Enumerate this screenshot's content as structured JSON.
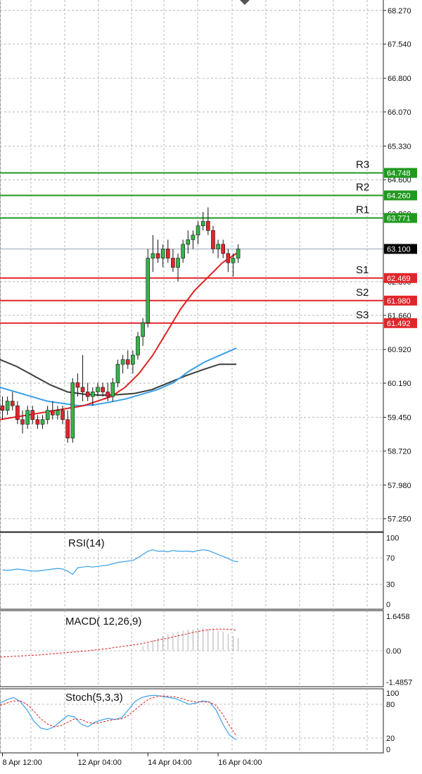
{
  "chart_data": [
    {
      "type": "candlestick",
      "y_ticks": [
        "68.270",
        "67.540",
        "66.800",
        "66.070",
        "65.330",
        "64.600",
        "63.860",
        "63.100",
        "62.390",
        "61.660",
        "60.920",
        "60.190",
        "59.450",
        "58.720",
        "57.980",
        "57.250"
      ],
      "y_tick_values": [
        68.27,
        67.54,
        66.8,
        66.07,
        65.33,
        64.6,
        63.86,
        63.1,
        62.39,
        61.66,
        60.92,
        60.19,
        59.45,
        58.72,
        57.98,
        57.25
      ],
      "ylim": [
        57.0,
        68.5
      ],
      "current_price": {
        "label": "63.100",
        "value": 63.1
      },
      "levels": [
        {
          "name": "R3",
          "label": "64.748",
          "value": 64.748,
          "kind": "resistance"
        },
        {
          "name": "R2",
          "label": "64.260",
          "value": 64.26,
          "kind": "resistance"
        },
        {
          "name": "R1",
          "label": "63.771",
          "value": 63.771,
          "kind": "resistance"
        },
        {
          "name": "S1",
          "label": "62.469",
          "value": 62.469,
          "kind": "support"
        },
        {
          "name": "S2",
          "label": "61.980",
          "value": 61.98,
          "kind": "support"
        },
        {
          "name": "S3",
          "label": "61.492",
          "value": 61.492,
          "kind": "support"
        }
      ],
      "x_ticks": [
        "8 Apr 12:00",
        "12 Apr 04:00",
        "14 Apr 04:00",
        "16 Apr 04:00"
      ],
      "x_tick_index": [
        0,
        15,
        29,
        43
      ],
      "candles": [
        [
          59.7,
          59.9,
          59.4,
          59.6
        ],
        [
          59.6,
          59.9,
          59.5,
          59.8
        ],
        [
          59.8,
          60.0,
          59.6,
          59.7
        ],
        [
          59.7,
          59.8,
          59.3,
          59.4
        ],
        [
          59.4,
          59.6,
          59.1,
          59.3
        ],
        [
          59.3,
          59.7,
          59.2,
          59.6
        ],
        [
          59.6,
          59.7,
          59.3,
          59.4
        ],
        [
          59.4,
          59.5,
          59.2,
          59.3
        ],
        [
          59.3,
          59.5,
          59.2,
          59.4
        ],
        [
          59.4,
          59.7,
          59.3,
          59.6
        ],
        [
          59.6,
          59.8,
          59.4,
          59.5
        ],
        [
          59.5,
          59.7,
          59.4,
          59.6
        ],
        [
          59.6,
          59.7,
          59.3,
          59.4
        ],
        [
          59.4,
          59.6,
          58.9,
          59.0
        ],
        [
          59.0,
          60.3,
          58.9,
          60.2
        ],
        [
          60.2,
          60.4,
          59.9,
          60.1
        ],
        [
          60.1,
          60.8,
          59.8,
          60.0
        ],
        [
          60.0,
          60.2,
          59.8,
          59.9
        ],
        [
          59.9,
          60.1,
          59.7,
          60.0
        ],
        [
          60.0,
          60.2,
          59.9,
          60.1
        ],
        [
          60.1,
          60.2,
          59.9,
          60.0
        ],
        [
          60.0,
          60.2,
          59.8,
          59.9
        ],
        [
          59.9,
          60.3,
          59.8,
          60.2
        ],
        [
          60.2,
          60.7,
          60.1,
          60.6
        ],
        [
          60.6,
          60.8,
          60.4,
          60.7
        ],
        [
          60.7,
          60.9,
          60.5,
          60.6
        ],
        [
          60.6,
          60.9,
          60.4,
          60.8
        ],
        [
          60.8,
          61.3,
          60.7,
          61.2
        ],
        [
          61.2,
          61.6,
          61.0,
          61.5
        ],
        [
          61.5,
          63.1,
          61.4,
          62.9
        ],
        [
          62.9,
          63.4,
          62.6,
          63.0
        ],
        [
          63.0,
          63.3,
          62.8,
          62.9
        ],
        [
          62.9,
          63.2,
          62.7,
          63.1
        ],
        [
          63.1,
          63.3,
          62.8,
          62.9
        ],
        [
          62.9,
          63.1,
          62.6,
          62.7
        ],
        [
          62.7,
          63.0,
          62.4,
          62.9
        ],
        [
          62.9,
          63.3,
          62.8,
          63.2
        ],
        [
          63.2,
          63.5,
          63.0,
          63.3
        ],
        [
          63.3,
          63.5,
          63.1,
          63.4
        ],
        [
          63.4,
          63.7,
          63.2,
          63.6
        ],
        [
          63.6,
          63.9,
          63.5,
          63.7
        ],
        [
          63.7,
          64.0,
          63.4,
          63.5
        ],
        [
          63.5,
          63.6,
          63.0,
          63.1
        ],
        [
          63.1,
          63.3,
          62.9,
          63.2
        ],
        [
          63.2,
          63.3,
          62.9,
          63.0
        ],
        [
          63.0,
          63.1,
          62.6,
          62.8
        ],
        [
          62.8,
          63.0,
          62.5,
          62.9
        ],
        [
          62.9,
          63.2,
          62.8,
          63.1
        ]
      ],
      "ma_red": [
        59.4,
        59.45,
        59.5,
        59.55,
        59.6,
        59.65,
        59.7,
        59.8,
        59.9,
        60.1,
        60.4,
        60.8,
        61.3,
        61.8,
        62.2,
        62.5,
        62.8,
        63.0
      ],
      "ma_blue": [
        60.1,
        60.0,
        59.9,
        59.8,
        59.75,
        59.7,
        59.72,
        59.78,
        59.85,
        59.95,
        60.05,
        60.2,
        60.45,
        60.65,
        60.8,
        60.95
      ],
      "ma_dark": [
        60.7,
        60.55,
        60.35,
        60.15,
        60.0,
        59.95,
        59.93,
        59.94,
        59.97,
        60.05,
        60.2,
        60.35,
        60.48,
        60.6,
        60.6
      ]
    },
    {
      "type": "line",
      "name": "RSI(14)",
      "y_ticks": [
        "100",
        "70",
        "30",
        "0"
      ],
      "y_tick_values": [
        100,
        70,
        30,
        0
      ],
      "ylim": [
        0,
        100
      ],
      "values": [
        52,
        51,
        52,
        53,
        52,
        51,
        50,
        50,
        51,
        52,
        53,
        54,
        53,
        50,
        45,
        55,
        56,
        57,
        56,
        57,
        58,
        59,
        61,
        63,
        64,
        65,
        66,
        70,
        75,
        80,
        82,
        80,
        80,
        79,
        81,
        80,
        80,
        80,
        79,
        81,
        82,
        81,
        78,
        75,
        72,
        69,
        65,
        64
      ]
    },
    {
      "type": "histogram",
      "name": "MACD( 12,26,9)",
      "y_ticks": [
        "1.6458",
        "0.00",
        "-1.4857"
      ],
      "y_tick_values": [
        1.6458,
        0.0,
        -1.4857
      ],
      "ylim": [
        -1.65,
        1.85
      ],
      "histogram_start_index": 28,
      "histogram": [
        0.2,
        0.35,
        0.5,
        0.6,
        0.7,
        0.78,
        0.85,
        0.9,
        0.95,
        1.0,
        1.0,
        1.05,
        1.08,
        1.05,
        1.0,
        0.95,
        0.9,
        0.8,
        0.7,
        0.6
      ],
      "signal": [
        -0.3,
        -0.28,
        -0.26,
        -0.24,
        -0.22,
        -0.2,
        -0.17,
        -0.14,
        -0.11,
        -0.08,
        -0.05,
        -0.02,
        0.02,
        0.06,
        0.1,
        0.15,
        0.2,
        0.25,
        0.3,
        0.37,
        0.45,
        0.53,
        0.6,
        0.68,
        0.76,
        0.85,
        0.92,
        0.98,
        1.02,
        1.03,
        1.02,
        0.98
      ]
    },
    {
      "type": "line",
      "name": "Stoch(5,3,3)",
      "y_ticks": [
        "100",
        "80",
        "20",
        "0"
      ],
      "y_tick_values": [
        100,
        80,
        20,
        0
      ],
      "ylim": [
        0,
        100
      ],
      "k": [
        82,
        88,
        92,
        85,
        70,
        50,
        38,
        35,
        40,
        50,
        60,
        58,
        45,
        40,
        48,
        52,
        55,
        53,
        56,
        70,
        85,
        92,
        95,
        96,
        94,
        92,
        90,
        85,
        80,
        82,
        86,
        84,
        70,
        45,
        25,
        17
      ],
      "d": [
        78,
        82,
        86,
        86,
        80,
        68,
        55,
        45,
        40,
        42,
        48,
        54,
        53,
        48,
        46,
        48,
        51,
        53,
        54,
        60,
        70,
        80,
        89,
        93,
        95,
        94,
        93,
        90,
        86,
        84,
        84,
        84,
        78,
        62,
        42,
        24
      ]
    }
  ]
}
